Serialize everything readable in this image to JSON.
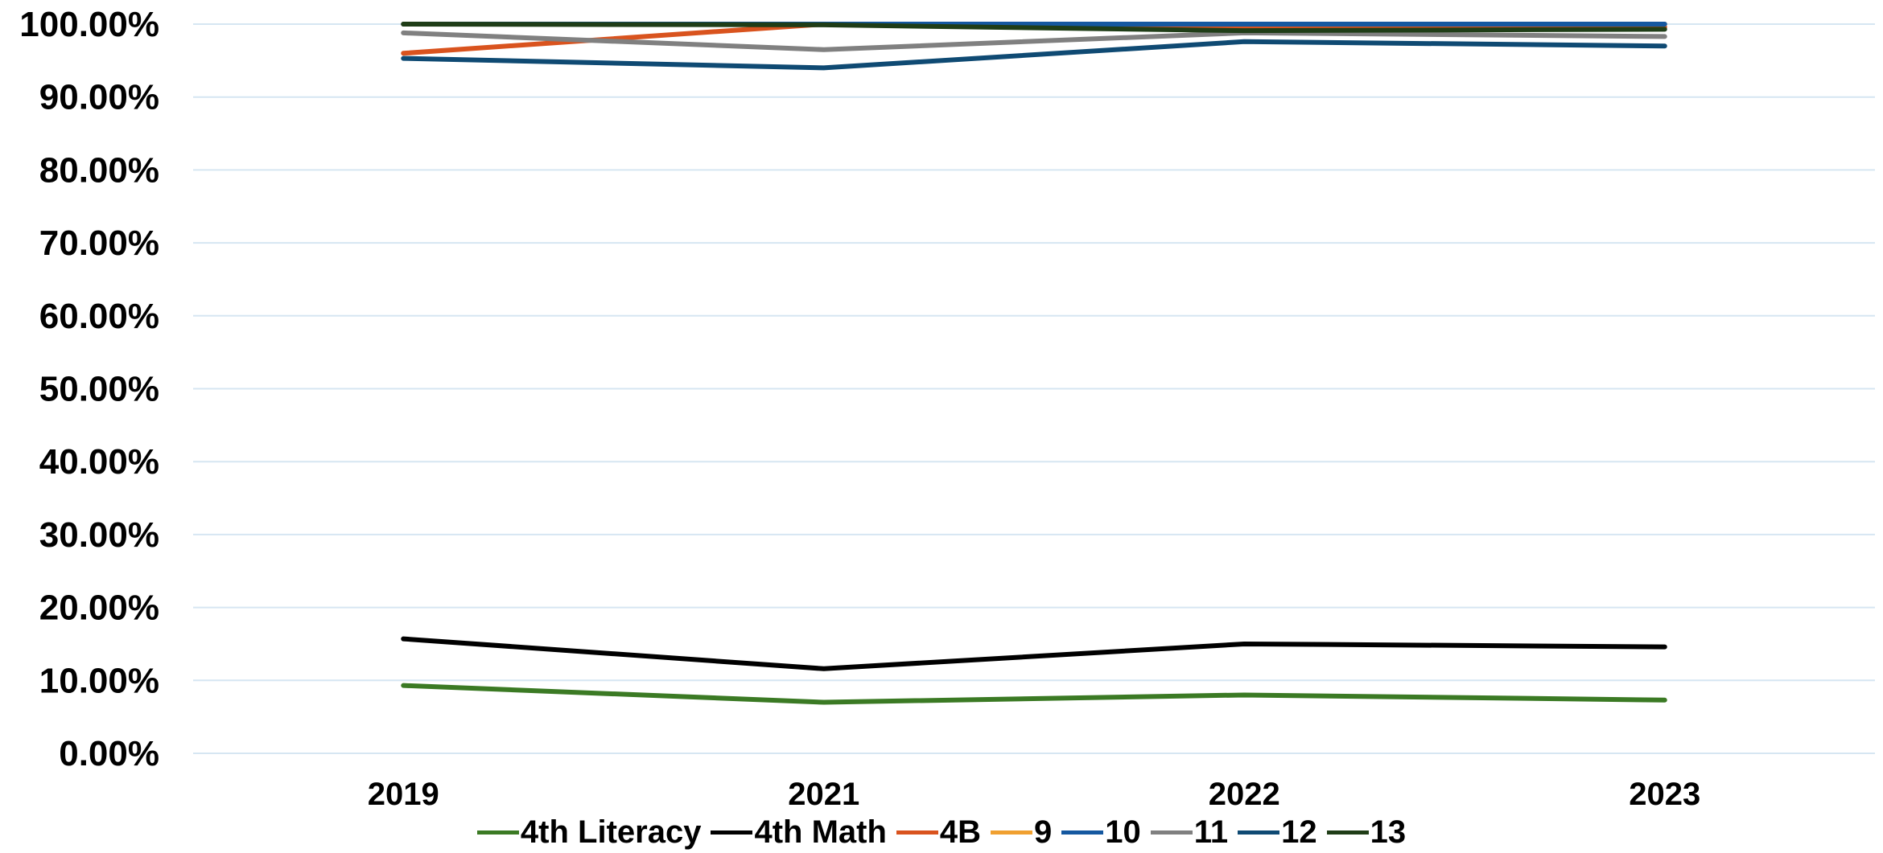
{
  "chart_data": {
    "type": "line",
    "title": "",
    "xlabel": "",
    "ylabel": "",
    "categories": [
      "2019",
      "2021",
      "2022",
      "2023"
    ],
    "ylim": [
      0,
      1.0
    ],
    "y_ticks": [
      "0.00%",
      "10.00%",
      "20.00%",
      "30.00%",
      "40.00%",
      "50.00%",
      "60.00%",
      "70.00%",
      "80.00%",
      "90.00%",
      "100.00%"
    ],
    "grid": "horizontal",
    "legend_position": "bottom",
    "series": [
      {
        "name": "4th Literacy",
        "color": "#3b7a24",
        "values": [
          0.093,
          0.07,
          0.08,
          0.073
        ]
      },
      {
        "name": "4th Math",
        "color": "#000000",
        "values": [
          0.157,
          0.116,
          0.15,
          0.146
        ]
      },
      {
        "name": "4B",
        "color": "#d9531e",
        "values": [
          0.96,
          1.0,
          0.995,
          0.996
        ]
      },
      {
        "name": "9",
        "color": "#f0a030",
        "values": [
          1.0,
          1.0,
          1.0,
          1.0
        ]
      },
      {
        "name": "10",
        "color": "#1558a0",
        "values": [
          1.0,
          1.0,
          1.0,
          1.0
        ]
      },
      {
        "name": "11",
        "color": "#808080",
        "values": [
          0.988,
          0.965,
          0.988,
          0.983
        ]
      },
      {
        "name": "12",
        "color": "#0f4a73",
        "values": [
          0.953,
          0.94,
          0.976,
          0.97
        ]
      },
      {
        "name": "13",
        "color": "#1f3d17",
        "values": [
          1.0,
          0.999,
          0.991,
          0.993
        ]
      }
    ]
  }
}
